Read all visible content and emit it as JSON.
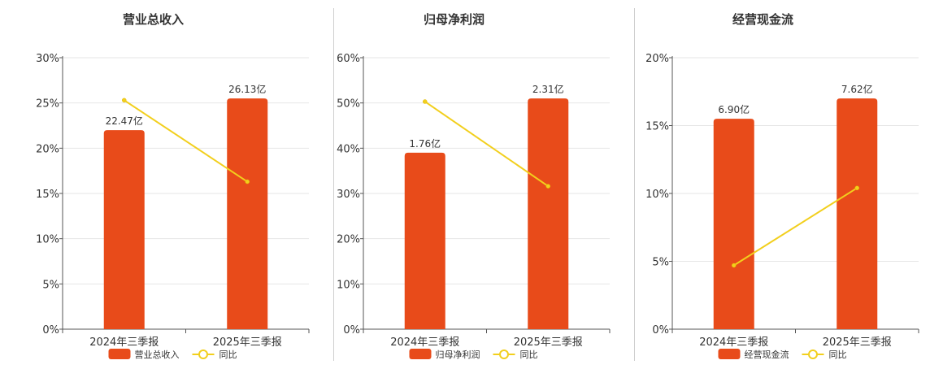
{
  "colors": {
    "bar": "#E84B1A",
    "line": "#F2CF1D",
    "axis": "#555555",
    "grid": "#e6e6e6",
    "text": "#333333"
  },
  "chart_data": [
    {
      "type": "bar",
      "title": "营业总收入",
      "categories": [
        "2024年三季报",
        "2025年三季报"
      ],
      "ylim": [
        0,
        30
      ],
      "yticks": [
        "0%",
        "5%",
        "10%",
        "15%",
        "20%",
        "25%",
        "30%"
      ],
      "bar_data_labels": [
        "22.47亿",
        "26.13亿"
      ],
      "series": [
        {
          "name": "营业总收入",
          "kind": "bar",
          "values": [
            22.0,
            25.5
          ]
        },
        {
          "name": "同比",
          "kind": "line",
          "values": [
            25.3,
            16.3
          ]
        }
      ],
      "legend": "bottom",
      "grid": true
    },
    {
      "type": "bar",
      "title": "归母净利润",
      "categories": [
        "2024年三季报",
        "2025年三季报"
      ],
      "ylim": [
        0,
        60
      ],
      "yticks": [
        "0%",
        "10%",
        "20%",
        "30%",
        "40%",
        "50%",
        "60%"
      ],
      "bar_data_labels": [
        "1.76亿",
        "2.31亿"
      ],
      "series": [
        {
          "name": "归母净利润",
          "kind": "bar",
          "values": [
            39.0,
            51.0
          ]
        },
        {
          "name": "同比",
          "kind": "line",
          "values": [
            50.3,
            31.6
          ]
        }
      ],
      "legend": "bottom",
      "grid": true
    },
    {
      "type": "bar",
      "title": "经营现金流",
      "categories": [
        "2024年三季报",
        "2025年三季报"
      ],
      "ylim": [
        0,
        20
      ],
      "yticks": [
        "0%",
        "5%",
        "10%",
        "15%",
        "20%"
      ],
      "bar_data_labels": [
        "6.90亿",
        "7.62亿"
      ],
      "series": [
        {
          "name": "经营现金流",
          "kind": "bar",
          "values": [
            15.5,
            17.0
          ]
        },
        {
          "name": "同比",
          "kind": "line",
          "values": [
            4.7,
            10.4
          ]
        }
      ],
      "legend": "bottom",
      "grid": true
    }
  ]
}
